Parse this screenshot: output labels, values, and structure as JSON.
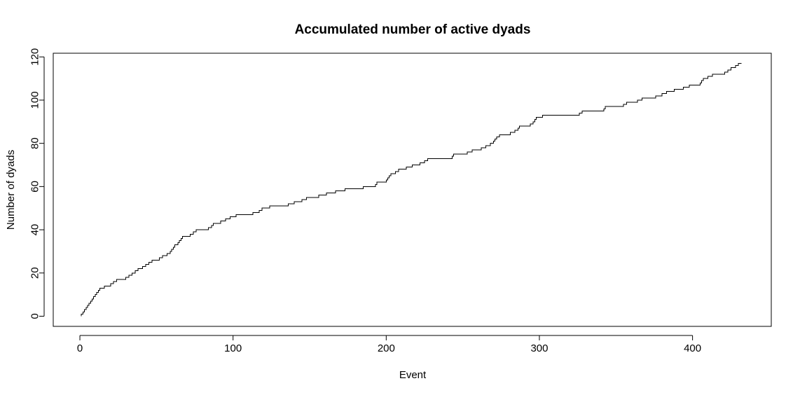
{
  "chart_data": {
    "type": "line",
    "title": "Accumulated number of active dyads",
    "xlabel": "Event",
    "ylabel": "Number of dyads",
    "xlim": [
      -17.4,
      451.4
    ],
    "ylim": [
      -4.7,
      121.7
    ],
    "xticks": [
      0,
      100,
      200,
      300,
      400
    ],
    "yticks": [
      0,
      20,
      40,
      60,
      80,
      100,
      120
    ],
    "grid": false,
    "legend": "none",
    "line_color": "#000000",
    "series": [
      {
        "style": "step",
        "points": [
          [
            1,
            0
          ],
          [
            1,
            1
          ],
          [
            2,
            1
          ],
          [
            2,
            2
          ],
          [
            3,
            2
          ],
          [
            3,
            3
          ],
          [
            4,
            3
          ],
          [
            4,
            4
          ],
          [
            5,
            4
          ],
          [
            5,
            5
          ],
          [
            6,
            5
          ],
          [
            6,
            6
          ],
          [
            7,
            6
          ],
          [
            7,
            7
          ],
          [
            8,
            7
          ],
          [
            8,
            8
          ],
          [
            9,
            8
          ],
          [
            9,
            9
          ],
          [
            10,
            9
          ],
          [
            10,
            10
          ],
          [
            11,
            10
          ],
          [
            11,
            11
          ],
          [
            12,
            11
          ],
          [
            12,
            12
          ],
          [
            13,
            12
          ],
          [
            13,
            13
          ],
          [
            16,
            13
          ],
          [
            16,
            14
          ],
          [
            20,
            14
          ],
          [
            20,
            15
          ],
          [
            22,
            15
          ],
          [
            22,
            16
          ],
          [
            24,
            16
          ],
          [
            24,
            17
          ],
          [
            30,
            17
          ],
          [
            30,
            18
          ],
          [
            32,
            18
          ],
          [
            32,
            19
          ],
          [
            34,
            19
          ],
          [
            34,
            20
          ],
          [
            36,
            20
          ],
          [
            36,
            21
          ],
          [
            38,
            21
          ],
          [
            38,
            22
          ],
          [
            41,
            22
          ],
          [
            41,
            23
          ],
          [
            43,
            23
          ],
          [
            43,
            24
          ],
          [
            45,
            24
          ],
          [
            45,
            25
          ],
          [
            47,
            25
          ],
          [
            47,
            26
          ],
          [
            52,
            26
          ],
          [
            52,
            27
          ],
          [
            54,
            27
          ],
          [
            54,
            28
          ],
          [
            57,
            28
          ],
          [
            57,
            29
          ],
          [
            59,
            29
          ],
          [
            59,
            30
          ],
          [
            60,
            30
          ],
          [
            60,
            31
          ],
          [
            61,
            31
          ],
          [
            61,
            32
          ],
          [
            62,
            32
          ],
          [
            62,
            33
          ],
          [
            64,
            33
          ],
          [
            64,
            34
          ],
          [
            65,
            34
          ],
          [
            65,
            35
          ],
          [
            66,
            35
          ],
          [
            66,
            36
          ],
          [
            67,
            36
          ],
          [
            67,
            37
          ],
          [
            72,
            37
          ],
          [
            72,
            38
          ],
          [
            74,
            38
          ],
          [
            74,
            39
          ],
          [
            76,
            39
          ],
          [
            76,
            40
          ],
          [
            84,
            40
          ],
          [
            84,
            41
          ],
          [
            86,
            41
          ],
          [
            86,
            42
          ],
          [
            87,
            42
          ],
          [
            87,
            43
          ],
          [
            92,
            43
          ],
          [
            92,
            44
          ],
          [
            95,
            44
          ],
          [
            95,
            45
          ],
          [
            98,
            45
          ],
          [
            98,
            46
          ],
          [
            102,
            46
          ],
          [
            102,
            47
          ],
          [
            113,
            47
          ],
          [
            113,
            48
          ],
          [
            117,
            48
          ],
          [
            117,
            49
          ],
          [
            119,
            49
          ],
          [
            119,
            50
          ],
          [
            124,
            50
          ],
          [
            124,
            51
          ],
          [
            136,
            51
          ],
          [
            136,
            52
          ],
          [
            140,
            52
          ],
          [
            140,
            53
          ],
          [
            145,
            53
          ],
          [
            145,
            54
          ],
          [
            148,
            54
          ],
          [
            148,
            55
          ],
          [
            156,
            55
          ],
          [
            156,
            56
          ],
          [
            161,
            56
          ],
          [
            161,
            57
          ],
          [
            167,
            57
          ],
          [
            167,
            58
          ],
          [
            173,
            58
          ],
          [
            173,
            59
          ],
          [
            185,
            59
          ],
          [
            185,
            60
          ],
          [
            193,
            60
          ],
          [
            193,
            61
          ],
          [
            194,
            61
          ],
          [
            194,
            62
          ],
          [
            200,
            62
          ],
          [
            200,
            63
          ],
          [
            201,
            63
          ],
          [
            201,
            64
          ],
          [
            202,
            64
          ],
          [
            202,
            65
          ],
          [
            203,
            65
          ],
          [
            203,
            66
          ],
          [
            206,
            66
          ],
          [
            206,
            67
          ],
          [
            208,
            67
          ],
          [
            208,
            68
          ],
          [
            213,
            68
          ],
          [
            213,
            69
          ],
          [
            217,
            69
          ],
          [
            217,
            70
          ],
          [
            222,
            70
          ],
          [
            222,
            71
          ],
          [
            225,
            71
          ],
          [
            225,
            72
          ],
          [
            227,
            72
          ],
          [
            227,
            73
          ],
          [
            243,
            73
          ],
          [
            243,
            74
          ],
          [
            244,
            74
          ],
          [
            244,
            75
          ],
          [
            253,
            75
          ],
          [
            253,
            76
          ],
          [
            256,
            76
          ],
          [
            256,
            77
          ],
          [
            262,
            77
          ],
          [
            262,
            78
          ],
          [
            265,
            78
          ],
          [
            265,
            79
          ],
          [
            268,
            79
          ],
          [
            268,
            80
          ],
          [
            270,
            80
          ],
          [
            270,
            81
          ],
          [
            271,
            81
          ],
          [
            271,
            82
          ],
          [
            272,
            82
          ],
          [
            272,
            83
          ],
          [
            274,
            83
          ],
          [
            274,
            84
          ],
          [
            281,
            84
          ],
          [
            281,
            85
          ],
          [
            284,
            85
          ],
          [
            284,
            86
          ],
          [
            286,
            86
          ],
          [
            286,
            87
          ],
          [
            287,
            87
          ],
          [
            287,
            88
          ],
          [
            294,
            88
          ],
          [
            294,
            89
          ],
          [
            296,
            89
          ],
          [
            296,
            90
          ],
          [
            297,
            90
          ],
          [
            297,
            91
          ],
          [
            298,
            91
          ],
          [
            298,
            92
          ],
          [
            302,
            92
          ],
          [
            302,
            93
          ],
          [
            326,
            93
          ],
          [
            326,
            94
          ],
          [
            328,
            94
          ],
          [
            328,
            95
          ],
          [
            342,
            95
          ],
          [
            342,
            96
          ],
          [
            343,
            96
          ],
          [
            343,
            97
          ],
          [
            355,
            97
          ],
          [
            355,
            98
          ],
          [
            357,
            98
          ],
          [
            357,
            99
          ],
          [
            364,
            99
          ],
          [
            364,
            100
          ],
          [
            367,
            100
          ],
          [
            367,
            101
          ],
          [
            376,
            101
          ],
          [
            376,
            102
          ],
          [
            380,
            102
          ],
          [
            380,
            103
          ],
          [
            383,
            103
          ],
          [
            383,
            104
          ],
          [
            388,
            104
          ],
          [
            388,
            105
          ],
          [
            394,
            105
          ],
          [
            394,
            106
          ],
          [
            398,
            106
          ],
          [
            398,
            107
          ],
          [
            405,
            107
          ],
          [
            405,
            108
          ],
          [
            406,
            108
          ],
          [
            406,
            109
          ],
          [
            407,
            109
          ],
          [
            407,
            110
          ],
          [
            410,
            110
          ],
          [
            410,
            111
          ],
          [
            413,
            111
          ],
          [
            413,
            112
          ],
          [
            421,
            112
          ],
          [
            421,
            113
          ],
          [
            423,
            113
          ],
          [
            423,
            114
          ],
          [
            425,
            114
          ],
          [
            425,
            115
          ],
          [
            428,
            115
          ],
          [
            428,
            116
          ],
          [
            430,
            116
          ],
          [
            430,
            117
          ],
          [
            432,
            117
          ]
        ]
      }
    ]
  }
}
